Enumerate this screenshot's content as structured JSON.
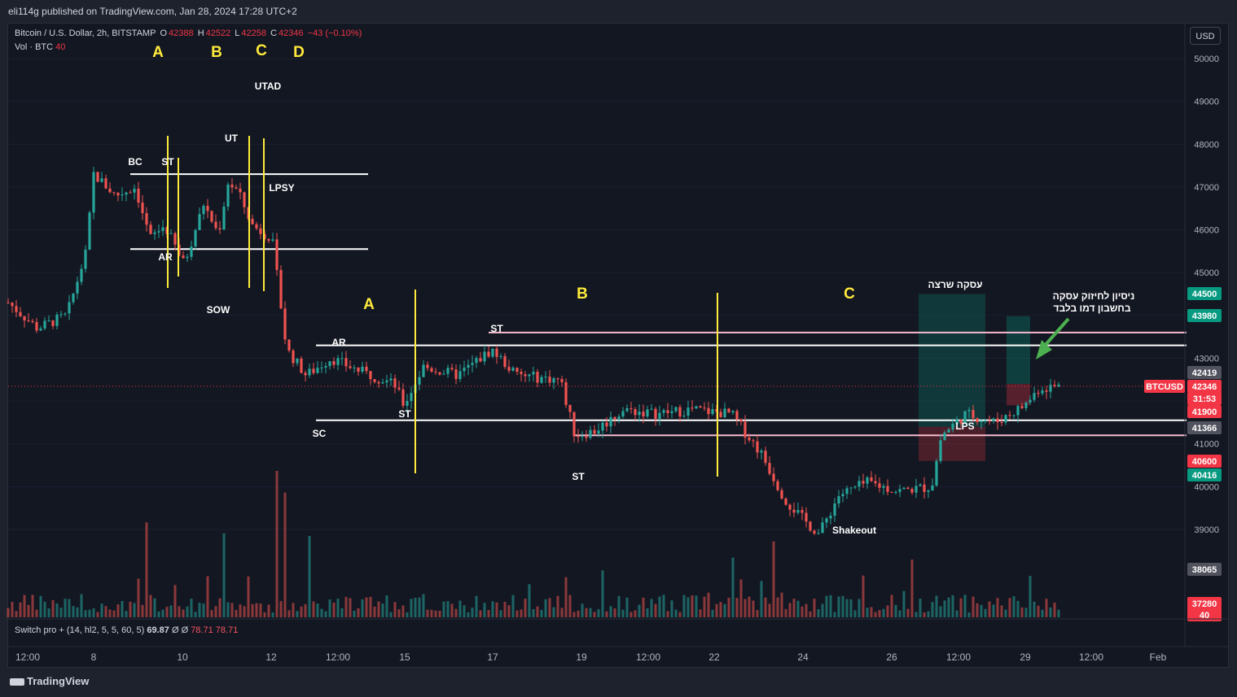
{
  "header": {
    "published": "eli114g published on TradingView.com, Jan 28, 2024 17:28 UTC+2"
  },
  "legend": {
    "symbol": "Bitcoin / U.S. Dollar, 2h, BITSTAMP",
    "o_label": "O",
    "o": "42388",
    "h_label": "H",
    "h": "42522",
    "l_label": "L",
    "l": "42258",
    "c_label": "C",
    "c": "42346",
    "change": "−43 (−0.10%)",
    "vol_label": "Vol · BTC",
    "vol": "40"
  },
  "currency": "USD",
  "oscillator": {
    "label": "Switch pro + (14, hl2, 5, 5, 60, 5)",
    "v1": "69.87",
    "sym1": "Ø",
    "sym2": "Ø",
    "v2": "78.71",
    "v3": "78.71"
  },
  "brand": "TradingView",
  "colors": {
    "up": "#26a69a",
    "down": "#ef5350",
    "annotation_yellow": "#ffeb3b",
    "bg": "#131722"
  },
  "chart_data": {
    "type": "candlestick",
    "symbol": "BTCUSD",
    "ylim": [
      37000,
      50400
    ],
    "y_ticks": [
      39000,
      40000,
      41000,
      42000,
      43000,
      44000,
      45000,
      46000,
      47000,
      48000,
      49000,
      50000
    ],
    "x_ticks": [
      "12:00",
      "8",
      "10",
      "12",
      "12:00",
      "15",
      "17",
      "19",
      "12:00",
      "22",
      "24",
      "26",
      "12:00",
      "29",
      "12:00",
      "Feb"
    ],
    "price_series": [
      [
        7.0,
        44300
      ],
      [
        7.6,
        43700
      ],
      [
        8.2,
        44000
      ],
      [
        8.6,
        45500
      ],
      [
        8.75,
        47300
      ],
      [
        9.2,
        46800
      ],
      [
        9.6,
        47000
      ],
      [
        9.9,
        45800
      ],
      [
        10.2,
        46100
      ],
      [
        10.6,
        45200
      ],
      [
        11.0,
        46600
      ],
      [
        11.3,
        45900
      ],
      [
        11.5,
        47100
      ],
      [
        11.7,
        46900
      ],
      [
        12.0,
        46100
      ],
      [
        12.4,
        45800
      ],
      [
        12.7,
        43200
      ],
      [
        13.1,
        42600
      ],
      [
        13.6,
        43000
      ],
      [
        14.2,
        42700
      ],
      [
        14.9,
        42400
      ],
      [
        15.1,
        41900
      ],
      [
        15.5,
        42800
      ],
      [
        16.2,
        42600
      ],
      [
        16.9,
        43200
      ],
      [
        17.4,
        42600
      ],
      [
        18.3,
        42500
      ],
      [
        18.6,
        41200
      ],
      [
        19.0,
        41300
      ],
      [
        19.6,
        41800
      ],
      [
        20.3,
        41700
      ],
      [
        21.0,
        41800
      ],
      [
        21.8,
        41700
      ],
      [
        22.4,
        40800
      ],
      [
        22.9,
        39700
      ],
      [
        23.3,
        39200
      ],
      [
        23.6,
        38900
      ],
      [
        24.0,
        39800
      ],
      [
        24.6,
        40100
      ],
      [
        25.2,
        39900
      ],
      [
        25.9,
        40000
      ],
      [
        26.1,
        41200
      ],
      [
        26.6,
        41700
      ],
      [
        27.2,
        41500
      ],
      [
        27.8,
        41900
      ],
      [
        28.1,
        42300
      ],
      [
        28.5,
        42346
      ]
    ],
    "volume_note": "Volume bars (BTC) shown at bottom",
    "volume_spikes": [
      [
        9.8,
        1750
      ],
      [
        11.4,
        1550
      ],
      [
        12.5,
        2700
      ],
      [
        12.7,
        2300
      ],
      [
        13.2,
        1500
      ],
      [
        21.8,
        1100
      ],
      [
        22.7,
        1400
      ]
    ],
    "horizontal_levels": [
      {
        "price": 47300,
        "color": "#ffffff"
      },
      {
        "price": 45550,
        "color": "#ffffff"
      },
      {
        "price": 43600,
        "color": "#f8bbd0"
      },
      {
        "price": 43300,
        "color": "#ffffff"
      },
      {
        "price": 41550,
        "color": "#ffffff"
      },
      {
        "price": 41200,
        "color": "#f8bbd0"
      }
    ],
    "price_labels": [
      {
        "text": "44500",
        "color": "#089981"
      },
      {
        "text": "43980",
        "color": "#089981"
      },
      {
        "text": "42419",
        "color": "#50535e"
      },
      {
        "text": "BTCUSD",
        "color": "#f23645"
      },
      {
        "text": "42346",
        "color": "#f23645"
      },
      {
        "text": "31:53",
        "color": "#f23645"
      },
      {
        "text": "41900",
        "color": "#f23645"
      },
      {
        "text": "41366",
        "color": "#50535e"
      },
      {
        "text": "40600",
        "color": "#f23645"
      },
      {
        "text": "40416",
        "color": "#089981"
      },
      {
        "text": "38065",
        "color": "#50535e"
      },
      {
        "text": "37280",
        "color": "#f23645"
      },
      {
        "text": "40",
        "color": "#f23645"
      }
    ],
    "annotations": [
      {
        "text": "A",
        "color": "yellow"
      },
      {
        "text": "B",
        "color": "yellow"
      },
      {
        "text": "C",
        "color": "yellow"
      },
      {
        "text": "D",
        "color": "yellow"
      },
      {
        "text": "UTAD"
      },
      {
        "text": "UT"
      },
      {
        "text": "BC"
      },
      {
        "text": "ST"
      },
      {
        "text": "LPSY"
      },
      {
        "text": "AR"
      },
      {
        "text": "SOW"
      },
      {
        "text": "A",
        "color": "yellow"
      },
      {
        "text": "B",
        "color": "yellow"
      },
      {
        "text": "C",
        "color": "yellow"
      },
      {
        "text": "AR"
      },
      {
        "text": "ST"
      },
      {
        "text": "ST"
      },
      {
        "text": "SC"
      },
      {
        "text": "ST"
      },
      {
        "text": "Shakeout"
      },
      {
        "text": "LPS"
      },
      {
        "text": "עסקה שרצה"
      },
      {
        "text": "ניסיון לחיזוק עסקה"
      },
      {
        "text": "בחשבון דמו בלבד"
      }
    ],
    "positions": [
      {
        "type": "long",
        "entry": 41400,
        "target": 44500,
        "stop": 40600
      },
      {
        "type": "long",
        "entry": 42400,
        "target": 43980,
        "stop": 41900
      }
    ]
  }
}
